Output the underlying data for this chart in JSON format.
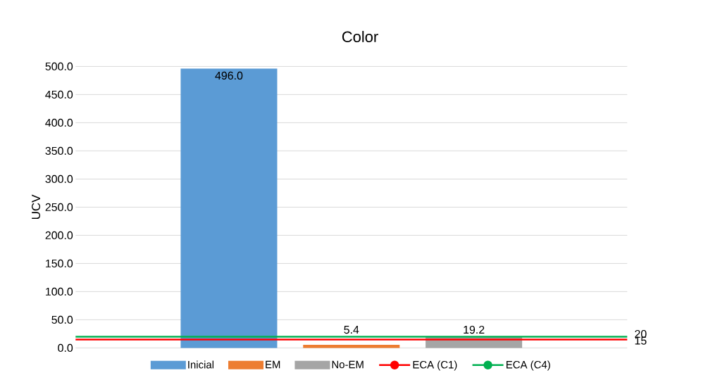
{
  "chart_data": {
    "type": "bar",
    "title": "Color",
    "ylabel": "UCV",
    "categories": [
      null
    ],
    "series": [
      {
        "name": "Inicial",
        "color": "#5b9bd5",
        "values": [
          496.0
        ],
        "value_labels": [
          "496.0"
        ]
      },
      {
        "name": "EM",
        "color": "#ed7d31",
        "values": [
          5.4
        ],
        "value_labels": [
          "5.4"
        ]
      },
      {
        "name": "No-EM",
        "color": "#a5a5a5",
        "values": [
          19.2
        ],
        "value_labels": [
          "19.2"
        ]
      }
    ],
    "ref_lines": [
      {
        "axis": "y",
        "value": 15,
        "label": "ECA (C1)",
        "color": "#ff0000",
        "line_style": "solid"
      },
      {
        "axis": "y",
        "value": 20,
        "label": "ECA (C4)",
        "color": "#00b050",
        "line_style": "solid"
      }
    ],
    "annotations": [
      "15",
      "20"
    ],
    "ylim": [
      0,
      500
    ],
    "yticks": [
      {
        "value": 0,
        "label": "0.0"
      },
      {
        "value": 50,
        "label": "50.0"
      },
      {
        "value": 100,
        "label": "100.0"
      },
      {
        "value": 150,
        "label": "150.0"
      },
      {
        "value": 200,
        "label": "200.0"
      },
      {
        "value": 250,
        "label": "250.0"
      },
      {
        "value": 300,
        "label": "300.0"
      },
      {
        "value": 350,
        "label": "350.0"
      },
      {
        "value": 400,
        "label": "400.0"
      },
      {
        "value": 450,
        "label": "450.0"
      },
      {
        "value": 500,
        "label": "500.0"
      }
    ],
    "grid": "y",
    "legend": "bottom"
  }
}
